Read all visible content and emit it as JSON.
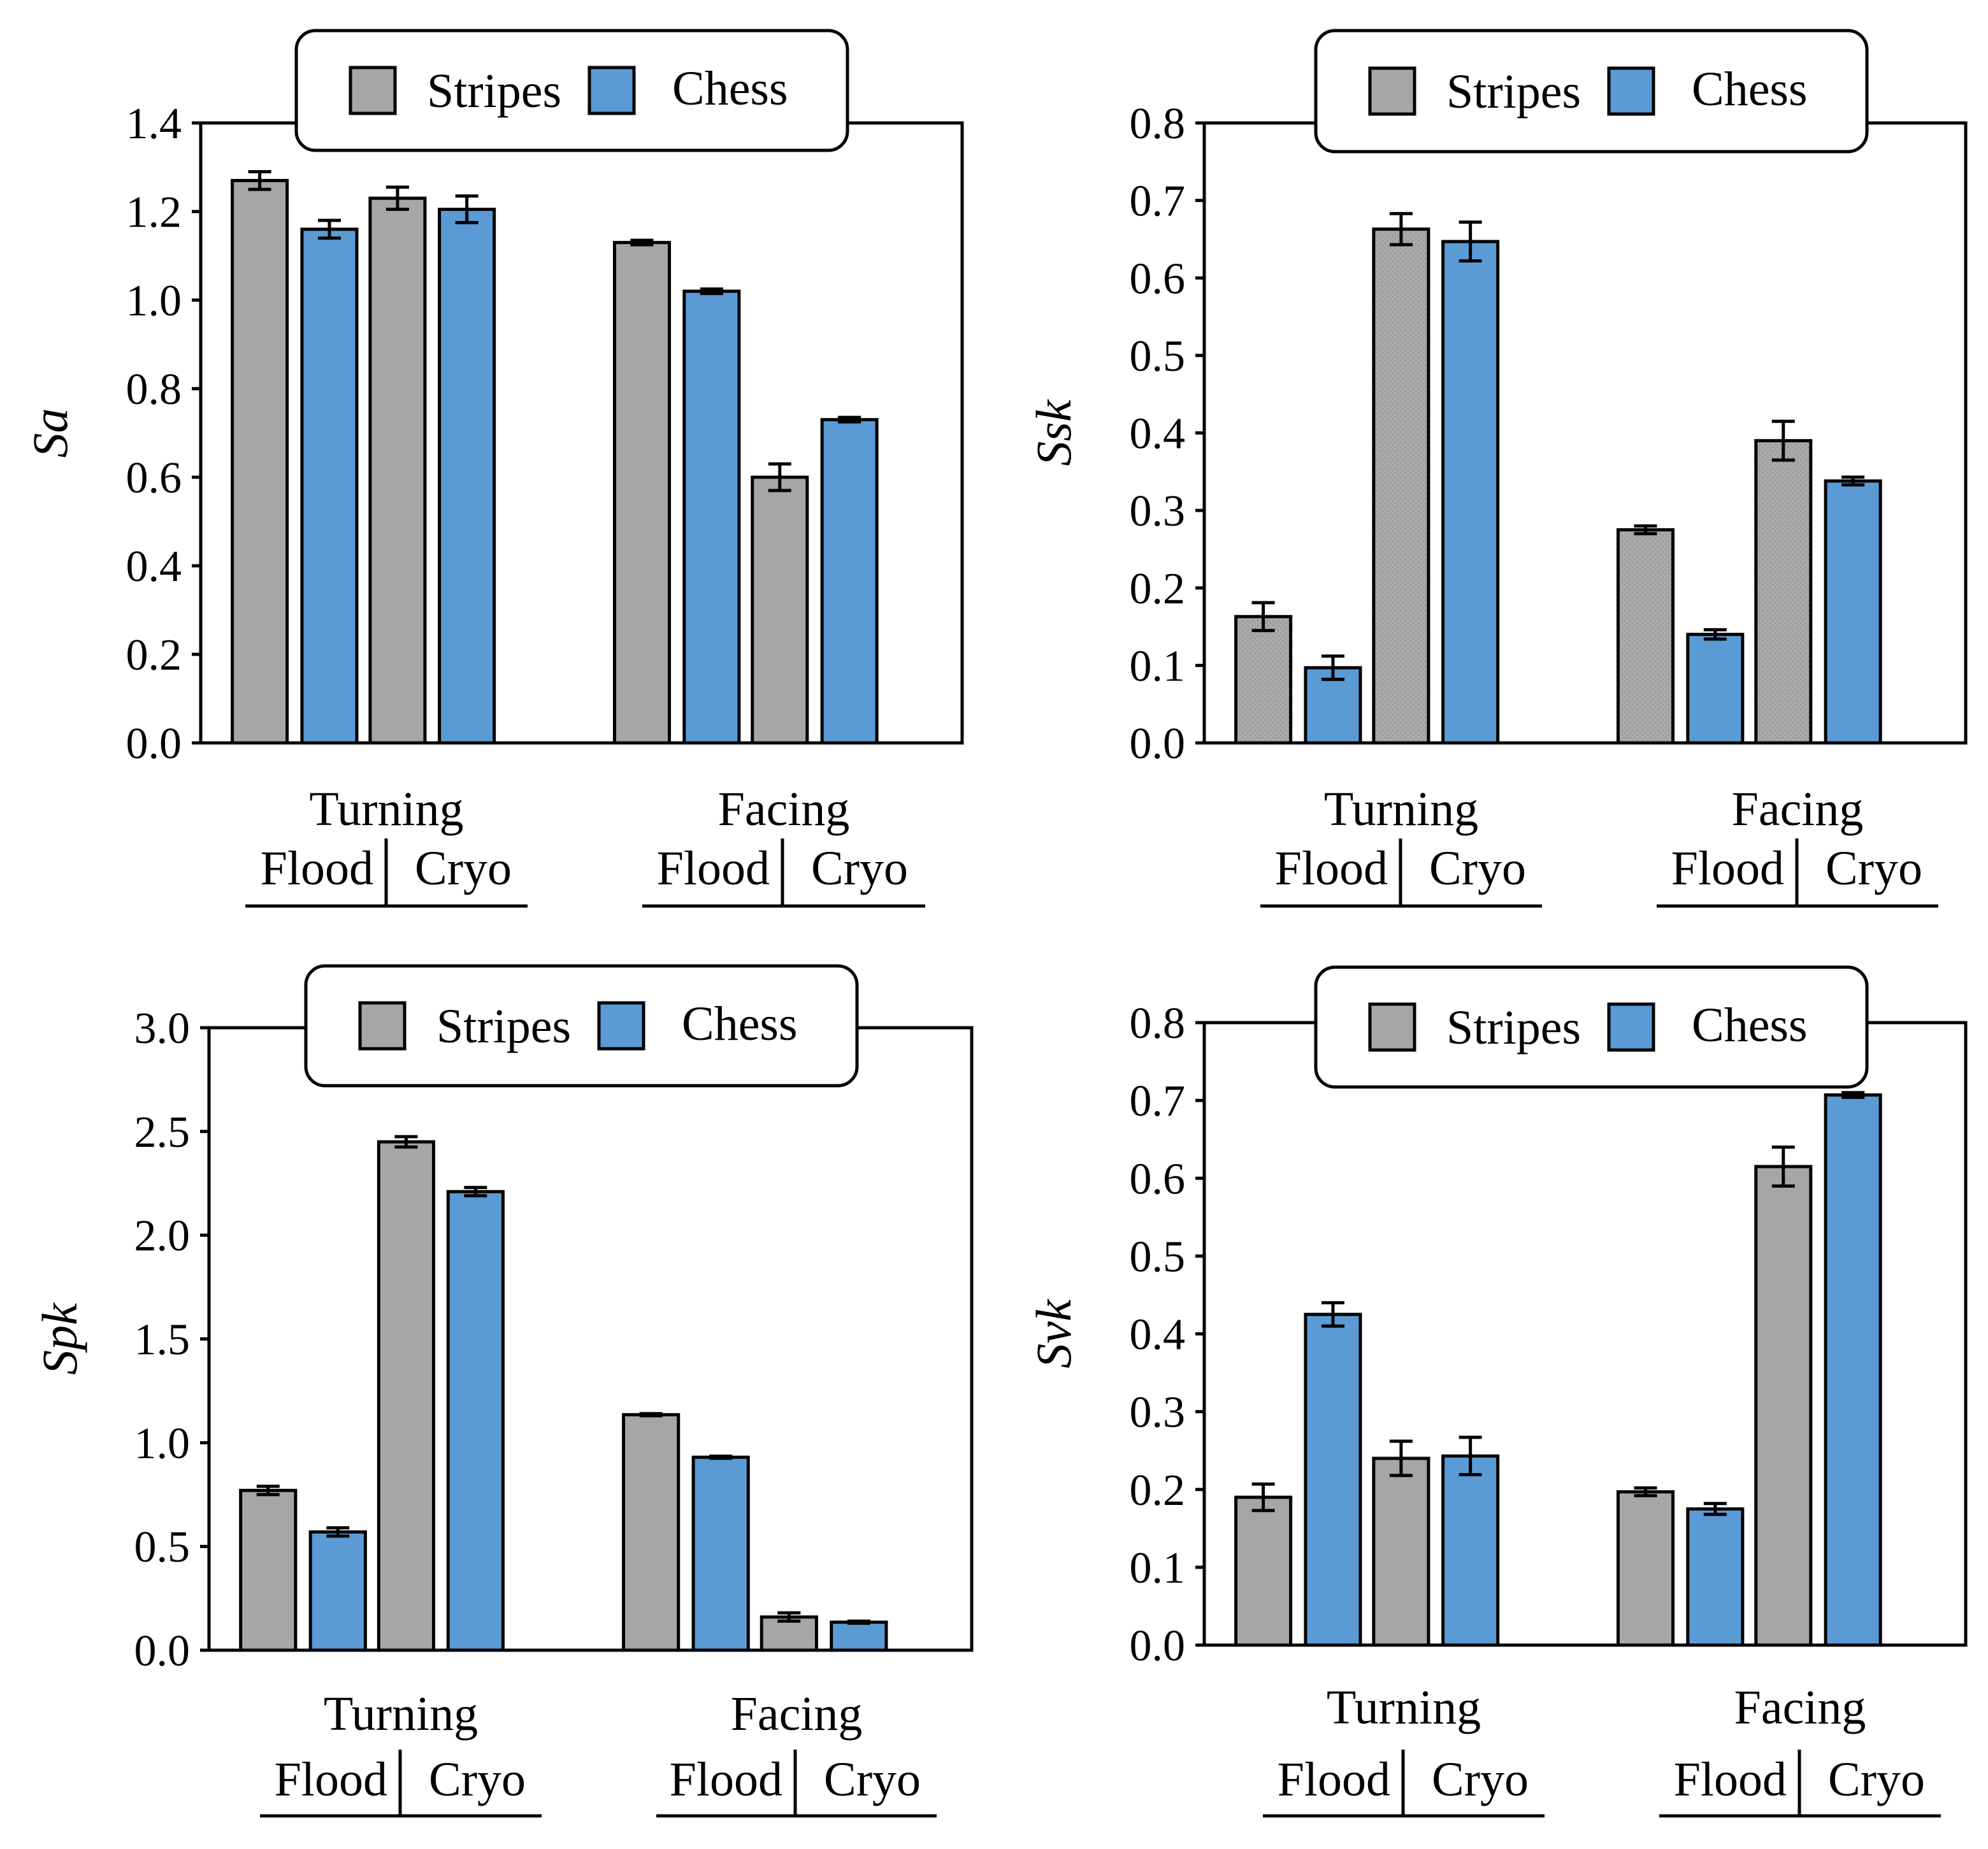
{
  "legend": {
    "stripes": "Stripes",
    "chess": "Chess"
  },
  "colors": {
    "stripes": "#a6a6a6",
    "chess": "#5b9bd5",
    "axis": "#000000"
  },
  "chart_data": [
    {
      "type": "bar",
      "ylabel": "Sa",
      "ylim": [
        0,
        1.4
      ],
      "yticks": [
        "0.0",
        "0.2",
        "0.4",
        "0.6",
        "0.8",
        "1.0",
        "1.2",
        "1.4"
      ],
      "groups": [
        {
          "label": "Turning",
          "sublabels": [
            "Flood",
            "Cryo"
          ]
        },
        {
          "label": "Facing",
          "sublabels": [
            "Flood",
            "Cryo"
          ]
        }
      ],
      "bars": [
        {
          "group": "Turning",
          "condition": "Flood",
          "series": "Stripes",
          "value": 1.27,
          "error": 0.02
        },
        {
          "group": "Turning",
          "condition": "Flood",
          "series": "Chess",
          "value": 1.16,
          "error": 0.02
        },
        {
          "group": "Turning",
          "condition": "Cryo",
          "series": "Stripes",
          "value": 1.23,
          "error": 0.025
        },
        {
          "group": "Turning",
          "condition": "Cryo",
          "series": "Chess",
          "value": 1.205,
          "error": 0.03
        },
        {
          "group": "Facing",
          "condition": "Flood",
          "series": "Stripes",
          "value": 1.13,
          "error": 0.005
        },
        {
          "group": "Facing",
          "condition": "Flood",
          "series": "Chess",
          "value": 1.02,
          "error": 0.005
        },
        {
          "group": "Facing",
          "condition": "Cryo",
          "series": "Stripes",
          "value": 0.6,
          "error": 0.03
        },
        {
          "group": "Facing",
          "condition": "Cryo",
          "series": "Chess",
          "value": 0.73,
          "error": 0.005
        }
      ]
    },
    {
      "type": "bar",
      "ylabel": "Ssk",
      "ylim": [
        0,
        0.8
      ],
      "yticks": [
        "0.0",
        "0.1",
        "0.2",
        "0.3",
        "0.4",
        "0.5",
        "0.6",
        "0.7",
        "0.8"
      ],
      "groups": [
        {
          "label": "Turning",
          "sublabels": [
            "Flood",
            "Cryo"
          ]
        },
        {
          "label": "Facing",
          "sublabels": [
            "Flood",
            "Cryo"
          ]
        }
      ],
      "bars": [
        {
          "group": "Turning",
          "condition": "Flood",
          "series": "Stripes",
          "value": 0.163,
          "error": 0.018
        },
        {
          "group": "Turning",
          "condition": "Flood",
          "series": "Chess",
          "value": 0.097,
          "error": 0.015
        },
        {
          "group": "Turning",
          "condition": "Cryo",
          "series": "Stripes",
          "value": 0.663,
          "error": 0.02
        },
        {
          "group": "Turning",
          "condition": "Cryo",
          "series": "Chess",
          "value": 0.647,
          "error": 0.025
        },
        {
          "group": "Facing",
          "condition": "Flood",
          "series": "Stripes",
          "value": 0.275,
          "error": 0.005
        },
        {
          "group": "Facing",
          "condition": "Flood",
          "series": "Chess",
          "value": 0.14,
          "error": 0.006
        },
        {
          "group": "Facing",
          "condition": "Cryo",
          "series": "Stripes",
          "value": 0.39,
          "error": 0.025
        },
        {
          "group": "Facing",
          "condition": "Cryo",
          "series": "Chess",
          "value": 0.338,
          "error": 0.005
        }
      ]
    },
    {
      "type": "bar",
      "ylabel": "Spk",
      "ylim": [
        0,
        3.0
      ],
      "yticks": [
        "0.0",
        "0.5",
        "1.0",
        "1.5",
        "2.0",
        "2.5",
        "3.0"
      ],
      "groups": [
        {
          "label": "Turning",
          "sublabels": [
            "Flood",
            "Cryo"
          ]
        },
        {
          "label": "Facing",
          "sublabels": [
            "Flood",
            "Cryo"
          ]
        }
      ],
      "bars": [
        {
          "group": "Turning",
          "condition": "Flood",
          "series": "Stripes",
          "value": 0.77,
          "error": 0.02
        },
        {
          "group": "Turning",
          "condition": "Flood",
          "series": "Chess",
          "value": 0.57,
          "error": 0.02
        },
        {
          "group": "Turning",
          "condition": "Cryo",
          "series": "Stripes",
          "value": 2.45,
          "error": 0.025
        },
        {
          "group": "Turning",
          "condition": "Cryo",
          "series": "Chess",
          "value": 2.21,
          "error": 0.02
        },
        {
          "group": "Facing",
          "condition": "Flood",
          "series": "Stripes",
          "value": 1.135,
          "error": 0.005
        },
        {
          "group": "Facing",
          "condition": "Flood",
          "series": "Chess",
          "value": 0.93,
          "error": 0.005
        },
        {
          "group": "Facing",
          "condition": "Cryo",
          "series": "Stripes",
          "value": 0.16,
          "error": 0.02
        },
        {
          "group": "Facing",
          "condition": "Cryo",
          "series": "Chess",
          "value": 0.135,
          "error": 0.005
        }
      ]
    },
    {
      "type": "bar",
      "ylabel": "Svk",
      "ylim": [
        0,
        0.8
      ],
      "yticks": [
        "0.0",
        "0.1",
        "0.2",
        "0.3",
        "0.4",
        "0.5",
        "0.6",
        "0.7",
        "0.8"
      ],
      "groups": [
        {
          "label": "Turning",
          "sublabels": [
            "Flood",
            "Cryo"
          ]
        },
        {
          "label": "Facing",
          "sublabels": [
            "Flood",
            "Cryo"
          ]
        }
      ],
      "bars": [
        {
          "group": "Turning",
          "condition": "Flood",
          "series": "Stripes",
          "value": 0.19,
          "error": 0.017
        },
        {
          "group": "Turning",
          "condition": "Flood",
          "series": "Chess",
          "value": 0.425,
          "error": 0.015
        },
        {
          "group": "Turning",
          "condition": "Cryo",
          "series": "Stripes",
          "value": 0.24,
          "error": 0.022
        },
        {
          "group": "Turning",
          "condition": "Cryo",
          "series": "Chess",
          "value": 0.243,
          "error": 0.024
        },
        {
          "group": "Facing",
          "condition": "Flood",
          "series": "Stripes",
          "value": 0.197,
          "error": 0.005
        },
        {
          "group": "Facing",
          "condition": "Flood",
          "series": "Chess",
          "value": 0.175,
          "error": 0.007
        },
        {
          "group": "Facing",
          "condition": "Cryo",
          "series": "Stripes",
          "value": 0.615,
          "error": 0.025
        },
        {
          "group": "Facing",
          "condition": "Cryo",
          "series": "Chess",
          "value": 0.707,
          "error": 0.003
        }
      ]
    }
  ]
}
